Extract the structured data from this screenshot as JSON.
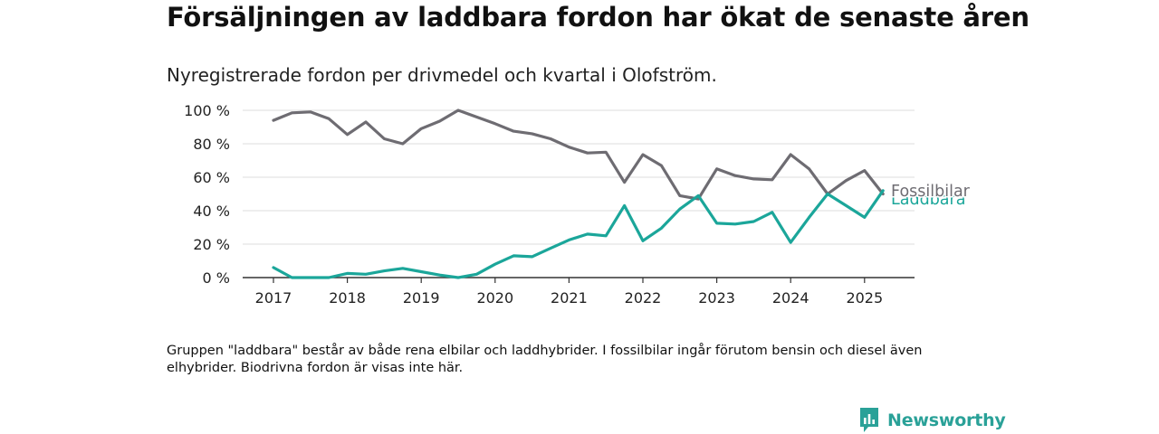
{
  "header": {
    "title": "Försäljningen av laddbara fordon har ökat de senaste åren",
    "subtitle": "Nyregistrerade fordon per drivmedel och kvartal i Olofström."
  },
  "footer": {
    "note": "Gruppen \"laddbara\" består av både rena elbilar och laddhybrider. I fossilbilar ingår förutom bensin och diesel även elhybrider. Biodrivna fordon är visas inte här.",
    "brand": "Newsworthy"
  },
  "colors": {
    "fossil": "#6e6c72",
    "laddbara": "#1ba69a",
    "grid": "#dddddd",
    "axis": "#333333",
    "brand": "#2aa198"
  },
  "chart_data": {
    "type": "line",
    "x": [
      "2017 Q1",
      "2017 Q2",
      "2017 Q3",
      "2017 Q4",
      "2018 Q1",
      "2018 Q2",
      "2018 Q3",
      "2018 Q4",
      "2019 Q1",
      "2019 Q2",
      "2019 Q3",
      "2019 Q4",
      "2020 Q1",
      "2020 Q2",
      "2020 Q3",
      "2020 Q4",
      "2021 Q1",
      "2021 Q2",
      "2021 Q3",
      "2021 Q4",
      "2022 Q1",
      "2022 Q2",
      "2022 Q3",
      "2022 Q4",
      "2023 Q1",
      "2023 Q2",
      "2023 Q3",
      "2023 Q4",
      "2024 Q1",
      "2024 Q2",
      "2024 Q3",
      "2024 Q4",
      "2025 Q1",
      "2025 Q2"
    ],
    "series": [
      {
        "name": "Fossilbilar",
        "values": [
          94,
          98.5,
          99,
          95,
          85.5,
          93,
          83,
          80,
          89,
          93.5,
          100,
          96,
          92,
          87.5,
          86,
          83,
          78,
          74.5,
          75,
          57,
          73.5,
          67,
          49,
          47,
          65,
          61,
          59,
          58.5,
          73.5,
          65,
          50,
          58,
          64,
          50
        ]
      },
      {
        "name": "Laddbara",
        "values": [
          6,
          0,
          0,
          0,
          2.5,
          2,
          4,
          5.5,
          3.5,
          1.5,
          0,
          2,
          8,
          13,
          12.5,
          17.5,
          22.5,
          26,
          25,
          43,
          22,
          29.5,
          41,
          49,
          32.5,
          32,
          33.5,
          39,
          21,
          36,
          50,
          43,
          36,
          52
        ]
      }
    ],
    "x_ticks": [
      "2017",
      "2018",
      "2019",
      "2020",
      "2021",
      "2022",
      "2023",
      "2024",
      "2025"
    ],
    "y_ticks": [
      "0 %",
      "20 %",
      "40 %",
      "60 %",
      "80 %",
      "100 %"
    ],
    "ylim": [
      0,
      100
    ],
    "grid": true,
    "legend": "line-end labels"
  }
}
